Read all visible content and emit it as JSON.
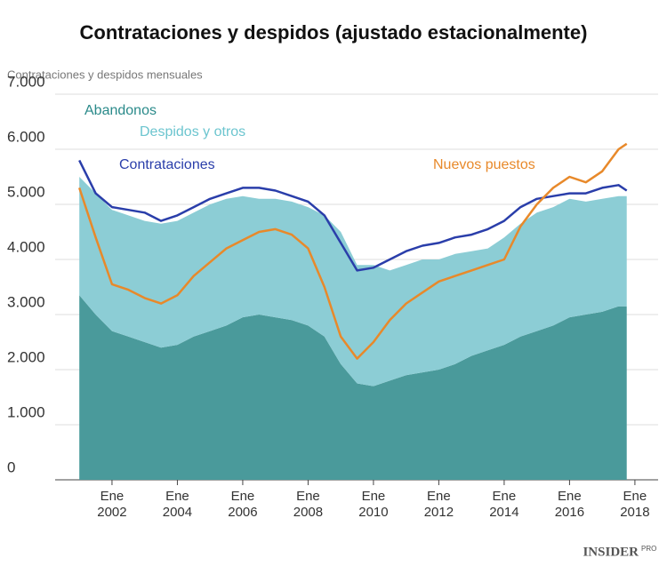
{
  "chart_data": {
    "type": "area",
    "title": "Contrataciones y despidos (ajustado estacionalmente)",
    "y_label": "Contrataciones y despidos mensuales",
    "x": [
      2001.0,
      2001.5,
      2002.0,
      2002.5,
      2003.0,
      2003.5,
      2004.0,
      2004.5,
      2005.0,
      2005.5,
      2006.0,
      2006.5,
      2007.0,
      2007.5,
      2008.0,
      2008.5,
      2009.0,
      2009.5,
      2010.0,
      2010.5,
      2011.0,
      2011.5,
      2012.0,
      2012.5,
      2013.0,
      2013.5,
      2014.0,
      2014.5,
      2015.0,
      2015.5,
      2016.0,
      2016.5,
      2017.0,
      2017.5,
      2017.75
    ],
    "series": [
      {
        "name": "Abandonos",
        "color": "#4a9a9b",
        "mark": "area",
        "values": [
          3350,
          3000,
          2700,
          2600,
          2500,
          2400,
          2450,
          2600,
          2700,
          2800,
          2950,
          3000,
          2950,
          2900,
          2800,
          2600,
          2100,
          1750,
          1700,
          1800,
          1900,
          1950,
          2000,
          2100,
          2250,
          2350,
          2450,
          2600,
          2700,
          2800,
          2950,
          3000,
          3050,
          3150,
          3150
        ]
      },
      {
        "name": "Despidos y otros",
        "color": "#8ccdd5",
        "mark": "area",
        "values": [
          2150,
          2200,
          2200,
          2200,
          2200,
          2250,
          2250,
          2250,
          2300,
          2300,
          2200,
          2100,
          2150,
          2150,
          2150,
          2200,
          2400,
          2150,
          2200,
          2000,
          2000,
          2050,
          2000,
          2000,
          1900,
          1850,
          1950,
          2050,
          2150,
          2150,
          2150,
          2050,
          2050,
          2000,
          2000
        ]
      },
      {
        "name": "Contrataciones",
        "color": "#2a3eaa",
        "mark": "line",
        "values": [
          5800,
          5200,
          4950,
          4900,
          4850,
          4700,
          4800,
          4950,
          5100,
          5200,
          5300,
          5300,
          5250,
          5150,
          5050,
          4800,
          4300,
          3800,
          3850,
          4000,
          4150,
          4250,
          4300,
          4400,
          4450,
          4550,
          4700,
          4950,
          5100,
          5150,
          5200,
          5200,
          5300,
          5350,
          5250
        ]
      },
      {
        "name": "Nuevos puestos",
        "color": "#e8892a",
        "mark": "line",
        "values": [
          5300,
          4400,
          3550,
          3450,
          3300,
          3200,
          3350,
          3700,
          3950,
          4200,
          4350,
          4500,
          4550,
          4450,
          4200,
          3500,
          2600,
          2200,
          2500,
          2900,
          3200,
          3400,
          3600,
          3700,
          3800,
          3900,
          4000,
          4600,
          5000,
          5300,
          5500,
          5400,
          5600,
          6000,
          6100
        ]
      }
    ],
    "xlim": [
      2000.26,
      2018.71
    ],
    "xticks": [
      {
        "value": 2002,
        "label": "Ene 2002"
      },
      {
        "value": 2004,
        "label": "Ene 2004"
      },
      {
        "value": 2006,
        "label": "Ene 2006"
      },
      {
        "value": 2008,
        "label": "Ene 2008"
      },
      {
        "value": 2010,
        "label": "Ene 2010"
      },
      {
        "value": 2012,
        "label": "Ene 2012"
      },
      {
        "value": 2014,
        "label": "Ene 2014"
      },
      {
        "value": 2016,
        "label": "Ene 2016"
      },
      {
        "value": 2018,
        "label": "Ene 2018"
      }
    ],
    "ylim": [
      0,
      7000
    ],
    "yticks": [
      0,
      {
        "value": 1000,
        "label": "1.000"
      },
      {
        "value": 2000,
        "label": "2.000"
      },
      {
        "value": 3000,
        "label": "3.000"
      },
      {
        "value": 4000,
        "label": "4.000"
      },
      {
        "value": 5000,
        "label": "5.000"
      },
      {
        "value": 6000,
        "label": "6.000"
      },
      {
        "value": 7000,
        "label": "7.000"
      }
    ],
    "grid": true,
    "source": "INSIDER",
    "source_sub": "PRO"
  }
}
